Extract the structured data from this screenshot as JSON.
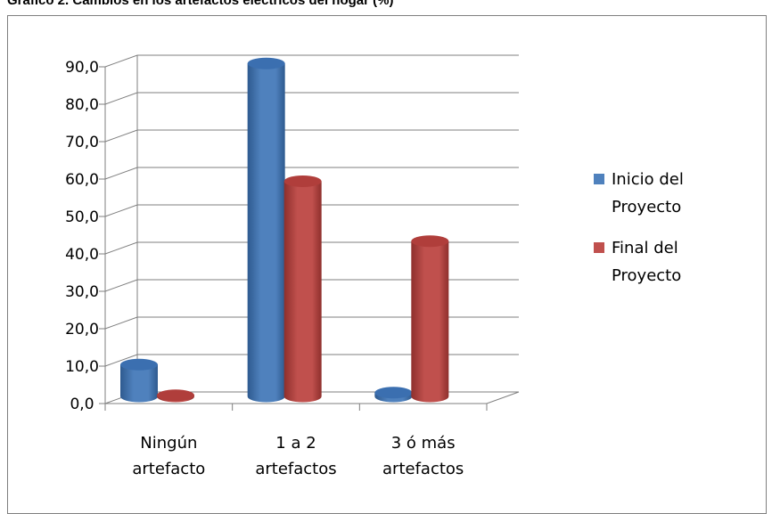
{
  "title": "Gráfico 2. Cambios en los artefactos eléctricos del hogar (%)",
  "colors": {
    "series1": "#4F81BD",
    "series1_dark": "#2E5A8F",
    "series1_top": "#3B6FB0",
    "series2": "#C0504D",
    "series2_dark": "#8E2F2C",
    "series2_top": "#B03E3B",
    "grid": "#7f7f7f"
  },
  "chart_data": {
    "type": "bar",
    "title": "Gráfico 2. Cambios en los artefactos eléctricos del hogar (%)",
    "categories": [
      [
        "Ningún",
        "artefacto"
      ],
      [
        "1 a 2",
        "artefactos"
      ],
      [
        "3 ó más",
        "artefactos"
      ]
    ],
    "series": [
      {
        "name": "Inicio del Proyecto",
        "legend_lines": [
          "Inicio del",
          "Proyecto"
        ],
        "values": [
          8.5,
          89.0,
          1.0
        ]
      },
      {
        "name": "Final del Proyecto",
        "legend_lines": [
          "Final del",
          "Proyecto"
        ],
        "values": [
          0.3,
          57.5,
          41.5
        ]
      }
    ],
    "ylim": [
      0,
      90
    ],
    "yticks": [
      "0,0",
      "10,0",
      "20,0",
      "30,0",
      "40,0",
      "50,0",
      "60,0",
      "70,0",
      "80,0",
      "90,0"
    ],
    "grid": true,
    "legend": "right",
    "style": "3d-cylinder"
  }
}
